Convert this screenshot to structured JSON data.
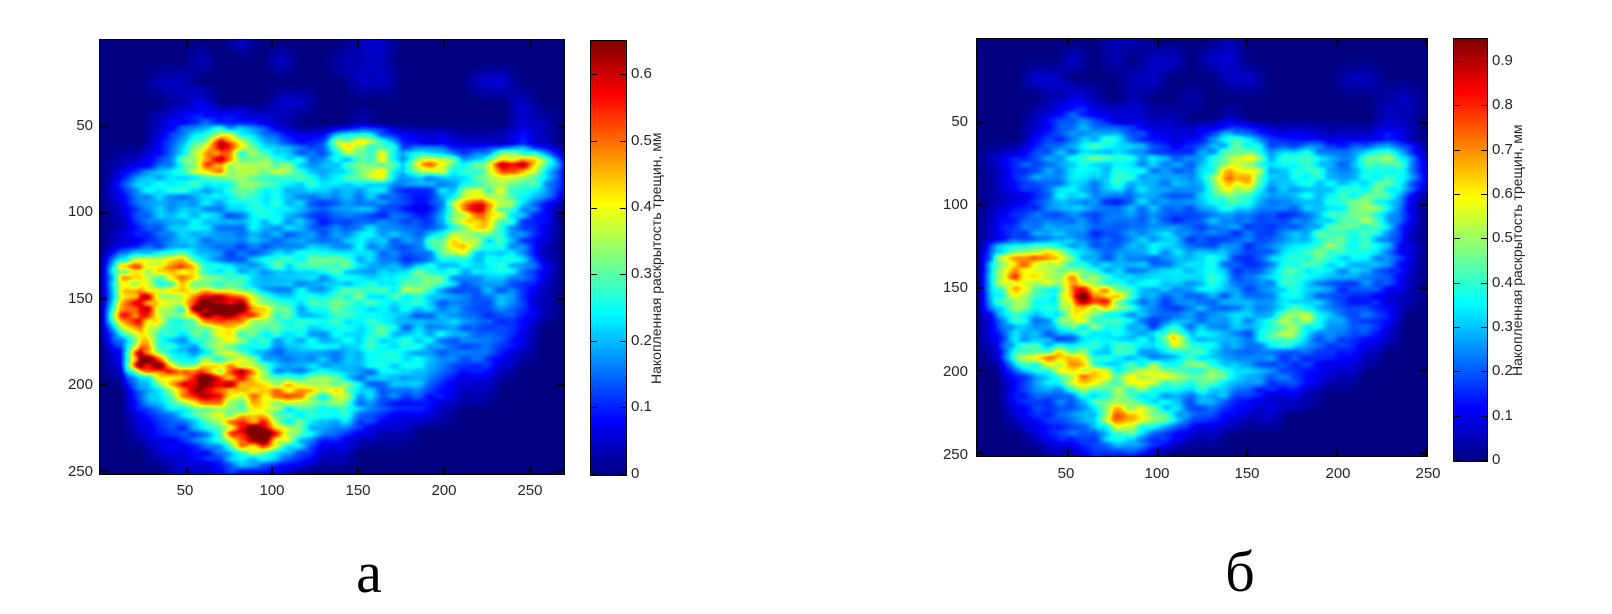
{
  "chart_data": [
    {
      "type": "heatmap",
      "caption": "а",
      "x_tick_labels": [
        "50",
        "100",
        "150",
        "200",
        "250"
      ],
      "y_tick_labels": [
        "50",
        "100",
        "150",
        "200",
        "250"
      ],
      "x_range": [
        0,
        270
      ],
      "y_range": [
        0,
        252
      ],
      "colormap": "jet",
      "background_value_color": "#000080",
      "colorbar": {
        "label": "Накопленная раскрытость трещин, мм",
        "tick_labels": [
          "0",
          "0.1",
          "0.2",
          "0.3",
          "0.4",
          "0.5",
          "0.6"
        ],
        "vmax_mm": 0.65
      },
      "values_encoding": "row-major coarse grid, integers 0-15; value_mm = v/15 * colorbar.vmax_mm",
      "grid": [
        [
          0,
          0,
          0,
          0,
          0,
          0,
          0,
          1,
          0,
          0,
          0,
          0,
          0,
          1,
          1,
          0,
          0,
          0,
          0,
          0,
          0,
          0,
          0,
          0
        ],
        [
          0,
          0,
          0,
          0,
          0,
          1,
          0,
          0,
          0,
          1,
          0,
          0,
          1,
          1,
          1,
          0,
          0,
          0,
          0,
          0,
          0,
          0,
          0,
          0
        ],
        [
          0,
          0,
          0,
          1,
          1,
          0,
          0,
          0,
          0,
          0,
          0,
          0,
          0,
          1,
          1,
          0,
          0,
          0,
          0,
          1,
          1,
          0,
          0,
          0
        ],
        [
          0,
          0,
          0,
          0,
          1,
          2,
          0,
          0,
          0,
          1,
          1,
          0,
          0,
          0,
          0,
          0,
          0,
          0,
          0,
          0,
          0,
          1,
          0,
          0
        ],
        [
          0,
          0,
          0,
          1,
          2,
          3,
          3,
          3,
          2,
          1,
          0,
          0,
          0,
          1,
          0,
          0,
          0,
          0,
          0,
          0,
          0,
          1,
          1,
          0
        ],
        [
          0,
          0,
          0,
          2,
          4,
          6,
          11,
          7,
          5,
          3,
          2,
          3,
          8,
          10,
          7,
          3,
          2,
          2,
          1,
          1,
          1,
          2,
          1,
          0
        ],
        [
          0,
          1,
          2,
          3,
          5,
          8,
          12,
          8,
          8,
          9,
          6,
          4,
          5,
          9,
          11,
          5,
          9,
          9,
          5,
          6,
          11,
          11,
          7,
          2
        ],
        [
          0,
          2,
          4,
          5,
          6,
          6,
          5,
          7,
          6,
          5,
          5,
          4,
          4,
          4,
          5,
          4,
          5,
          5,
          5,
          6,
          7,
          7,
          5,
          2
        ],
        [
          0,
          1,
          3,
          4,
          4,
          5,
          4,
          5,
          6,
          5,
          4,
          3,
          4,
          4,
          3,
          3,
          2,
          4,
          8,
          12,
          11,
          5,
          2,
          0
        ],
        [
          0,
          1,
          2,
          3,
          4,
          4,
          4,
          5,
          5,
          4,
          4,
          3,
          4,
          6,
          5,
          4,
          3,
          4,
          6,
          9,
          8,
          4,
          2,
          0
        ],
        [
          0,
          2,
          3,
          4,
          4,
          3,
          3,
          3,
          4,
          5,
          5,
          4,
          4,
          5,
          4,
          3,
          4,
          8,
          9,
          6,
          6,
          4,
          1,
          0
        ],
        [
          0,
          12,
          13,
          11,
          10,
          6,
          5,
          5,
          5,
          6,
          5,
          6,
          6,
          5,
          4,
          5,
          6,
          7,
          6,
          5,
          6,
          5,
          2,
          0
        ],
        [
          0,
          10,
          12,
          7,
          8,
          7,
          6,
          5,
          4,
          4,
          5,
          4,
          6,
          5,
          5,
          6,
          6,
          5,
          4,
          5,
          4,
          3,
          1,
          0
        ],
        [
          0,
          11,
          12,
          8,
          6,
          14,
          15,
          12,
          8,
          6,
          4,
          5,
          5,
          5,
          4,
          5,
          5,
          4,
          5,
          4,
          4,
          3,
          1,
          0
        ],
        [
          0,
          6,
          10,
          6,
          7,
          9,
          8,
          7,
          6,
          5,
          5,
          4,
          5,
          4,
          5,
          4,
          5,
          5,
          4,
          3,
          3,
          2,
          0,
          0
        ],
        [
          0,
          2,
          11,
          7,
          5,
          6,
          7,
          6,
          5,
          4,
          5,
          5,
          4,
          5,
          4,
          5,
          4,
          3,
          3,
          3,
          2,
          1,
          0,
          0
        ],
        [
          0,
          1,
          12,
          13,
          10,
          13,
          8,
          11,
          7,
          5,
          4,
          6,
          5,
          4,
          5,
          4,
          4,
          3,
          2,
          2,
          1,
          0,
          0,
          0
        ],
        [
          0,
          0,
          3,
          6,
          10,
          13,
          12,
          9,
          12,
          13,
          12,
          8,
          10,
          7,
          5,
          4,
          3,
          2,
          1,
          1,
          0,
          0,
          0,
          0
        ],
        [
          0,
          0,
          2,
          4,
          5,
          7,
          8,
          7,
          8,
          7,
          6,
          5,
          6,
          4,
          3,
          2,
          2,
          1,
          0,
          0,
          0,
          0,
          0,
          0
        ],
        [
          0,
          0,
          1,
          2,
          3,
          5,
          7,
          14,
          15,
          10,
          6,
          4,
          3,
          2,
          1,
          1,
          0,
          0,
          0,
          0,
          0,
          0,
          0,
          0
        ],
        [
          0,
          0,
          0,
          1,
          2,
          3,
          4,
          8,
          7,
          4,
          3,
          1,
          1,
          0,
          0,
          0,
          0,
          0,
          0,
          0,
          0,
          0,
          0,
          0
        ],
        [
          0,
          0,
          0,
          0,
          1,
          1,
          2,
          3,
          2,
          1,
          0,
          0,
          0,
          0,
          0,
          0,
          0,
          0,
          0,
          0,
          0,
          0,
          0,
          0
        ]
      ]
    },
    {
      "type": "heatmap",
      "caption": "б",
      "x_tick_labels": [
        "50",
        "100",
        "150",
        "200",
        "250"
      ],
      "y_tick_labels": [
        "50",
        "100",
        "150",
        "200",
        "250"
      ],
      "x_range": [
        0,
        250
      ],
      "y_range": [
        0,
        252
      ],
      "colormap": "jet",
      "background_value_color": "#000080",
      "colorbar": {
        "label": "Накопленная раскрытость трещин, мм",
        "tick_labels": [
          "0",
          "0.1",
          "0.2",
          "0.3",
          "0.4",
          "0.5",
          "0.6",
          "0.7",
          "0.8",
          "0.9"
        ],
        "vmax_mm": 0.95
      },
      "values_encoding": "row-major coarse grid, integers 0-15; value_mm = v/15 * colorbar.vmax_mm",
      "grid": [
        [
          0,
          0,
          0,
          0,
          0,
          0,
          0,
          1,
          1,
          0,
          0,
          0,
          0,
          1,
          0,
          0,
          0,
          0,
          0,
          0,
          0,
          0,
          0,
          0
        ],
        [
          0,
          0,
          0,
          0,
          0,
          1,
          0,
          1,
          0,
          1,
          1,
          0,
          1,
          1,
          0,
          0,
          0,
          0,
          0,
          0,
          0,
          0,
          0,
          0
        ],
        [
          0,
          0,
          0,
          1,
          1,
          0,
          0,
          0,
          1,
          1,
          0,
          0,
          0,
          1,
          1,
          0,
          0,
          0,
          0,
          1,
          1,
          0,
          0,
          0
        ],
        [
          0,
          0,
          0,
          0,
          1,
          2,
          1,
          0,
          1,
          0,
          0,
          1,
          0,
          0,
          0,
          0,
          0,
          0,
          0,
          0,
          0,
          1,
          1,
          0
        ],
        [
          0,
          0,
          0,
          1,
          2,
          3,
          3,
          2,
          2,
          1,
          1,
          0,
          0,
          1,
          0,
          0,
          0,
          0,
          0,
          0,
          0,
          1,
          1,
          0
        ],
        [
          0,
          0,
          0,
          2,
          3,
          4,
          6,
          6,
          4,
          3,
          2,
          2,
          4,
          5,
          4,
          2,
          2,
          2,
          1,
          1,
          1,
          2,
          1,
          0
        ],
        [
          0,
          1,
          2,
          3,
          4,
          5,
          7,
          6,
          6,
          6,
          4,
          3,
          4,
          6,
          7,
          4,
          5,
          6,
          4,
          4,
          6,
          6,
          5,
          2
        ],
        [
          0,
          1,
          3,
          4,
          4,
          5,
          4,
          6,
          5,
          4,
          4,
          3,
          5,
          9,
          8,
          4,
          4,
          5,
          4,
          4,
          5,
          6,
          5,
          2
        ],
        [
          0,
          1,
          2,
          3,
          4,
          4,
          4,
          4,
          5,
          4,
          3,
          3,
          4,
          6,
          5,
          3,
          3,
          4,
          5,
          6,
          6,
          5,
          2,
          0
        ],
        [
          0,
          1,
          2,
          3,
          3,
          4,
          3,
          4,
          4,
          4,
          3,
          3,
          4,
          5,
          4,
          3,
          3,
          4,
          5,
          6,
          6,
          4,
          2,
          0
        ],
        [
          0,
          2,
          3,
          4,
          4,
          3,
          3,
          3,
          4,
          4,
          5,
          4,
          4,
          4,
          4,
          3,
          4,
          5,
          6,
          5,
          5,
          4,
          1,
          0
        ],
        [
          0,
          8,
          9,
          10,
          9,
          6,
          5,
          4,
          5,
          6,
          5,
          5,
          5,
          4,
          4,
          4,
          5,
          5,
          5,
          4,
          5,
          4,
          2,
          0
        ],
        [
          0,
          6,
          9,
          7,
          8,
          9,
          7,
          5,
          4,
          4,
          4,
          4,
          5,
          4,
          4,
          5,
          5,
          4,
          4,
          4,
          4,
          3,
          1,
          0
        ],
        [
          0,
          5,
          7,
          6,
          5,
          15,
          13,
          8,
          6,
          5,
          4,
          4,
          4,
          4,
          4,
          4,
          4,
          4,
          4,
          3,
          3,
          2,
          1,
          0
        ],
        [
          0,
          4,
          7,
          5,
          6,
          10,
          7,
          6,
          5,
          4,
          4,
          4,
          4,
          4,
          4,
          4,
          6,
          6,
          4,
          3,
          3,
          2,
          0,
          0
        ],
        [
          0,
          2,
          6,
          5,
          4,
          5,
          6,
          5,
          4,
          4,
          9,
          4,
          4,
          4,
          4,
          7,
          7,
          4,
          3,
          3,
          2,
          1,
          0,
          0
        ],
        [
          0,
          1,
          6,
          7,
          9,
          8,
          6,
          7,
          6,
          4,
          4,
          5,
          4,
          4,
          4,
          4,
          3,
          3,
          2,
          2,
          1,
          0,
          0,
          0
        ],
        [
          0,
          0,
          3,
          5,
          6,
          9,
          10,
          7,
          9,
          10,
          8,
          6,
          7,
          5,
          4,
          3,
          3,
          2,
          1,
          1,
          0,
          0,
          0,
          0
        ],
        [
          0,
          0,
          2,
          3,
          4,
          6,
          6,
          6,
          6,
          6,
          5,
          4,
          5,
          4,
          3,
          2,
          2,
          1,
          0,
          0,
          0,
          0,
          0,
          0
        ],
        [
          0,
          0,
          1,
          2,
          3,
          4,
          5,
          10,
          9,
          6,
          5,
          3,
          3,
          2,
          1,
          1,
          0,
          0,
          0,
          0,
          0,
          0,
          0,
          0
        ],
        [
          0,
          0,
          0,
          1,
          2,
          3,
          3,
          5,
          5,
          3,
          2,
          1,
          1,
          0,
          0,
          0,
          0,
          0,
          0,
          0,
          0,
          0,
          0,
          0
        ],
        [
          0,
          0,
          0,
          0,
          1,
          1,
          2,
          2,
          2,
          1,
          0,
          0,
          0,
          0,
          0,
          0,
          0,
          0,
          0,
          0,
          0,
          0,
          0,
          0
        ]
      ]
    }
  ]
}
